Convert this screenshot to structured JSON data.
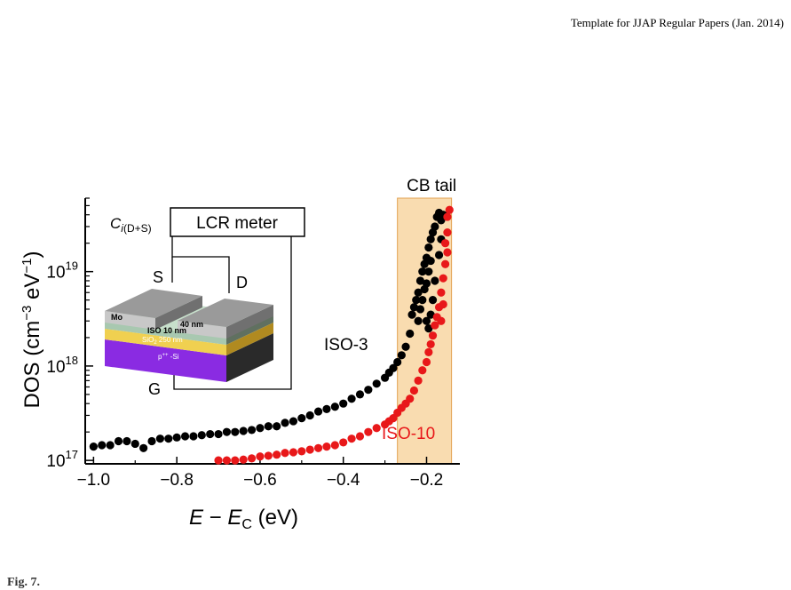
{
  "page": {
    "header": "Template for JJAP Regular Papers (Jan. 2014)",
    "caption": "Fig. 7."
  },
  "colors": {
    "iso3": "#000000",
    "iso10": "#e8181a",
    "band": "#f9dcb0",
    "band_edge": "#e2a050"
  },
  "chart_data": {
    "type": "scatter",
    "title": "",
    "xlabel": "E − E_C (eV)",
    "ylabel": "DOS (cm⁻³ eV⁻¹)",
    "xlim": [
      -1.02,
      -0.12
    ],
    "ylim": [
      9.2e+16,
      6e+19
    ],
    "yscale": "log",
    "x_ticks": [
      -1.0,
      -0.8,
      -0.6,
      -0.4,
      -0.2
    ],
    "x_tick_labels": [
      "−1.0",
      "−0.8",
      "−0.6",
      "−0.4",
      "−0.2"
    ],
    "y_ticks": [
      1e+17,
      1e+18,
      1e+19
    ],
    "y_tick_labels": [
      {
        "base": "10",
        "exp": "17"
      },
      {
        "base": "10",
        "exp": "18"
      },
      {
        "base": "10",
        "exp": "19"
      }
    ],
    "shaded_region": {
      "label": "CB tail",
      "x": [
        -0.27,
        -0.14
      ]
    },
    "series": [
      {
        "name": "ISO-3",
        "points": [
          [
            -1.0,
            1.4e+17
          ],
          [
            -0.98,
            1.45e+17
          ],
          [
            -0.96,
            1.45e+17
          ],
          [
            -0.94,
            1.6e+17
          ],
          [
            -0.92,
            1.6e+17
          ],
          [
            -0.9,
            1.5e+17
          ],
          [
            -0.88,
            1.35e+17
          ],
          [
            -0.86,
            1.6e+17
          ],
          [
            -0.84,
            1.7e+17
          ],
          [
            -0.82,
            1.7e+17
          ],
          [
            -0.8,
            1.75e+17
          ],
          [
            -0.78,
            1.8e+17
          ],
          [
            -0.76,
            1.8e+17
          ],
          [
            -0.74,
            1.85e+17
          ],
          [
            -0.72,
            1.9e+17
          ],
          [
            -0.7,
            1.9e+17
          ],
          [
            -0.68,
            2e+17
          ],
          [
            -0.66,
            2e+17
          ],
          [
            -0.64,
            2.05e+17
          ],
          [
            -0.62,
            2.1e+17
          ],
          [
            -0.6,
            2.2e+17
          ],
          [
            -0.58,
            2.3e+17
          ],
          [
            -0.56,
            2.3e+17
          ],
          [
            -0.54,
            2.5e+17
          ],
          [
            -0.52,
            2.6e+17
          ],
          [
            -0.5,
            2.8e+17
          ],
          [
            -0.48,
            3e+17
          ],
          [
            -0.46,
            3.3e+17
          ],
          [
            -0.44,
            3.5e+17
          ],
          [
            -0.42,
            3.7e+17
          ],
          [
            -0.4,
            4e+17
          ],
          [
            -0.38,
            4.5e+17
          ],
          [
            -0.36,
            5e+17
          ],
          [
            -0.34,
            5.6e+17
          ],
          [
            -0.32,
            6.5e+17
          ],
          [
            -0.3,
            7.5e+17
          ],
          [
            -0.29,
            8.5e+17
          ],
          [
            -0.28,
            9.5e+17
          ],
          [
            -0.27,
            1.1e+18
          ],
          [
            -0.26,
            1.3e+18
          ],
          [
            -0.25,
            1.6e+18
          ],
          [
            -0.24,
            2.2e+18
          ],
          [
            -0.235,
            3.5e+18
          ],
          [
            -0.23,
            4.2e+18
          ],
          [
            -0.225,
            5e+18
          ],
          [
            -0.22,
            3e+18
          ],
          [
            -0.22,
            6e+18
          ],
          [
            -0.215,
            4e+18
          ],
          [
            -0.215,
            8e+18
          ],
          [
            -0.21,
            5e+18
          ],
          [
            -0.21,
            1e+19
          ],
          [
            -0.205,
            6.5e+18
          ],
          [
            -0.205,
            1.2e+19
          ],
          [
            -0.2,
            3e+18
          ],
          [
            -0.2,
            7.5e+18
          ],
          [
            -0.2,
            1.4e+19
          ],
          [
            -0.195,
            2.5e+18
          ],
          [
            -0.195,
            1e+19
          ],
          [
            -0.195,
            1.8e+19
          ],
          [
            -0.19,
            3.5e+18
          ],
          [
            -0.19,
            1.3e+19
          ],
          [
            -0.19,
            2.2e+19
          ],
          [
            -0.185,
            5e+18
          ],
          [
            -0.185,
            2.6e+19
          ],
          [
            -0.18,
            3e+19
          ],
          [
            -0.18,
            8e+18
          ],
          [
            -0.175,
            3.8e+19
          ],
          [
            -0.17,
            4.2e+19
          ],
          [
            -0.17,
            1.5e+19
          ],
          [
            -0.165,
            3.5e+19
          ],
          [
            -0.165,
            2.2e+19
          ],
          [
            -0.16,
            4e+19
          ]
        ]
      },
      {
        "name": "ISO-10",
        "points": [
          [
            -0.7,
            1e+17
          ],
          [
            -0.68,
            1e+17
          ],
          [
            -0.66,
            1e+17
          ],
          [
            -0.64,
            1.02e+17
          ],
          [
            -0.62,
            1.05e+17
          ],
          [
            -0.6,
            1.1e+17
          ],
          [
            -0.58,
            1.12e+17
          ],
          [
            -0.56,
            1.15e+17
          ],
          [
            -0.54,
            1.2e+17
          ],
          [
            -0.52,
            1.22e+17
          ],
          [
            -0.5,
            1.25e+17
          ],
          [
            -0.48,
            1.3e+17
          ],
          [
            -0.46,
            1.35e+17
          ],
          [
            -0.44,
            1.4e+17
          ],
          [
            -0.42,
            1.45e+17
          ],
          [
            -0.4,
            1.55e+17
          ],
          [
            -0.38,
            1.7e+17
          ],
          [
            -0.36,
            1.8e+17
          ],
          [
            -0.34,
            2e+17
          ],
          [
            -0.32,
            2.2e+17
          ],
          [
            -0.3,
            2.4e+17
          ],
          [
            -0.29,
            2.6e+17
          ],
          [
            -0.28,
            2.8e+17
          ],
          [
            -0.27,
            3.2e+17
          ],
          [
            -0.26,
            3.6e+17
          ],
          [
            -0.25,
            4e+17
          ],
          [
            -0.24,
            4.5e+17
          ],
          [
            -0.23,
            5.5e+17
          ],
          [
            -0.22,
            7e+17
          ],
          [
            -0.21,
            9e+17
          ],
          [
            -0.2,
            1.1e+18
          ],
          [
            -0.195,
            1.4e+18
          ],
          [
            -0.19,
            1.7e+18
          ],
          [
            -0.185,
            2.1e+18
          ],
          [
            -0.18,
            2.7e+18
          ],
          [
            -0.175,
            3.3e+18
          ],
          [
            -0.17,
            4.2e+18
          ],
          [
            -0.165,
            6e+18
          ],
          [
            -0.165,
            3e+18
          ],
          [
            -0.16,
            8.5e+18
          ],
          [
            -0.16,
            4.5e+18
          ],
          [
            -0.155,
            1.2e+19
          ],
          [
            -0.155,
            2e+19
          ],
          [
            -0.15,
            2.6e+19
          ],
          [
            -0.15,
            1.6e+19
          ],
          [
            -0.15,
            3.8e+19
          ],
          [
            -0.145,
            4.5e+19
          ]
        ]
      }
    ],
    "annotations": {
      "iso3": "ISO-3",
      "iso10": "ISO-10",
      "cb_tail": "CB tail"
    }
  },
  "inset": {
    "meter_label": "LCR meter",
    "cap_main": "C",
    "cap_sub_i": "i",
    "cap_sub_rest": "(D+S)",
    "source": "S",
    "drain": "D",
    "gate": "G",
    "mo": "Mo",
    "mo_thickness": "40 nm",
    "iso_layer": "ISO  10 nm",
    "oxide_layer": "SiO",
    "oxide_sub": "2",
    "oxide_thickness": "250 nm",
    "substrate_sup": "++",
    "substrate": "p",
    "substrate_rest": " -Si"
  }
}
